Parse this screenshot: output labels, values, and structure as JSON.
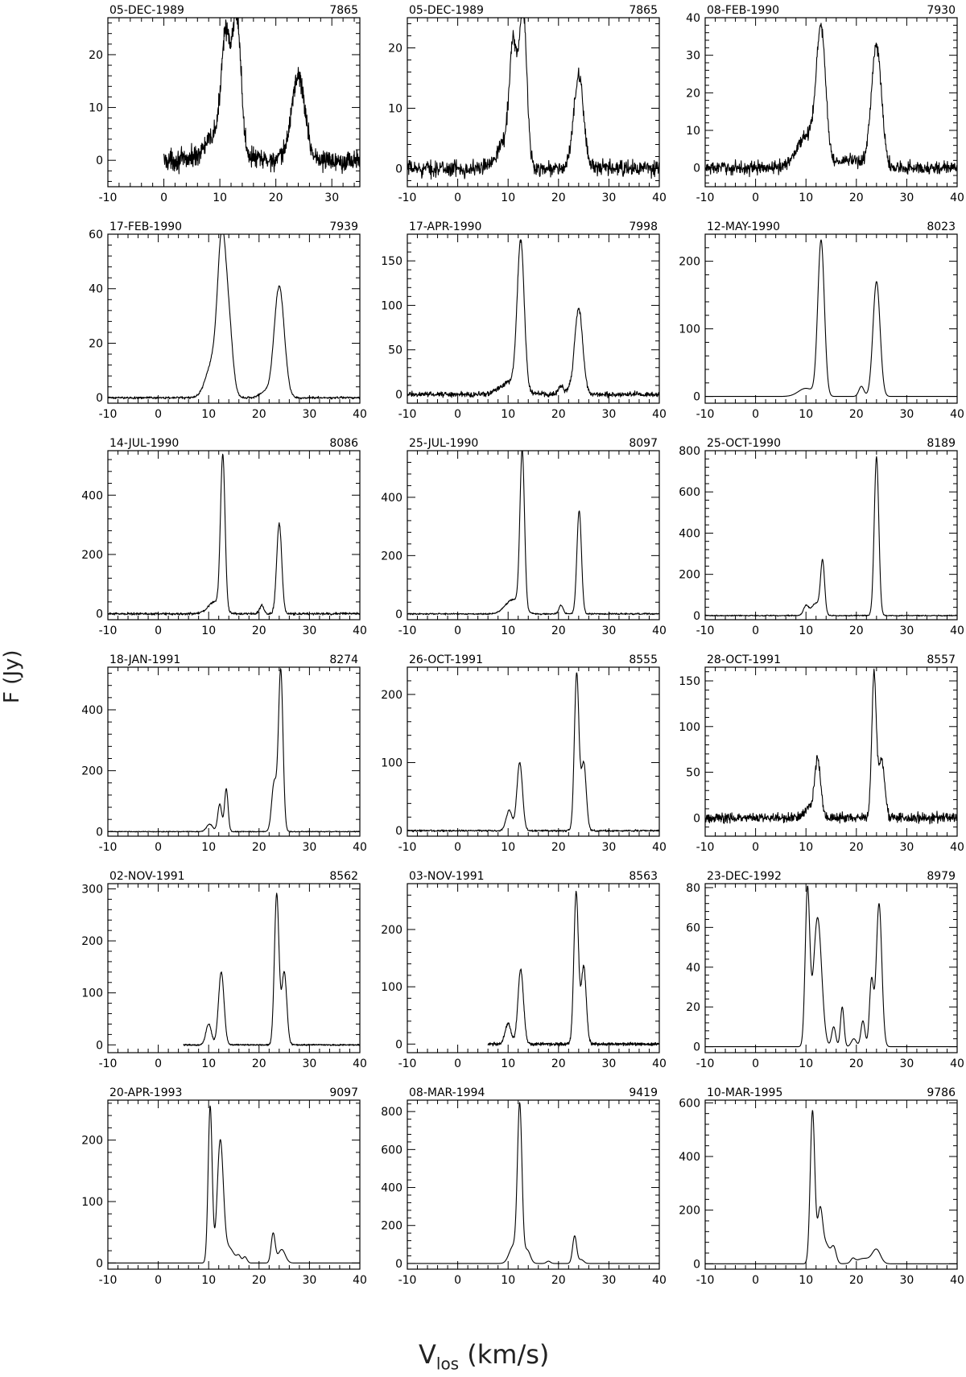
{
  "ylabel": "F  (Jy)",
  "xlabel_main": "V",
  "xlabel_sub": "los",
  "xlabel_unit": " (km/s)",
  "line_color": "#000000",
  "chart_data": [
    {
      "type": "line",
      "date": "05-DEC-1989",
      "id": "7865",
      "xlim": [
        -10,
        35
      ],
      "ylim": [
        -5,
        27
      ],
      "yticks": [
        0,
        10,
        20
      ],
      "xticks": [
        -10,
        0,
        10,
        20,
        30
      ],
      "x_range": [
        0,
        35
      ],
      "noise": 1.5,
      "baseline": 0,
      "peaks": [
        {
          "c": 11.0,
          "a": 19,
          "w": 0.7
        },
        {
          "c": 12.6,
          "a": 15,
          "w": 0.6
        },
        {
          "c": 13.4,
          "a": 15,
          "w": 0.6
        },
        {
          "c": 10.5,
          "a": 6,
          "w": 2.5
        },
        {
          "c": 24.0,
          "a": 16,
          "w": 1.2
        }
      ]
    },
    {
      "type": "line",
      "date": "05-DEC-1989",
      "id": "7865",
      "xlim": [
        -10,
        40
      ],
      "ylim": [
        -3,
        25
      ],
      "yticks": [
        0,
        10,
        20
      ],
      "xticks": [
        -10,
        0,
        10,
        20,
        30,
        40
      ],
      "x_range": [
        -10,
        40
      ],
      "noise": 1.0,
      "baseline": 0,
      "peaks": [
        {
          "c": 11.0,
          "a": 17,
          "w": 0.7
        },
        {
          "c": 12.6,
          "a": 16,
          "w": 0.6
        },
        {
          "c": 13.4,
          "a": 14,
          "w": 0.6
        },
        {
          "c": 10.0,
          "a": 5,
          "w": 2.0
        },
        {
          "c": 24.0,
          "a": 15,
          "w": 1.0
        }
      ]
    },
    {
      "type": "line",
      "date": "08-FEB-1990",
      "id": "7930",
      "xlim": [
        -10,
        40
      ],
      "ylim": [
        -5,
        40
      ],
      "yticks": [
        0,
        10,
        20,
        30,
        40
      ],
      "xticks": [
        -10,
        0,
        10,
        20,
        30,
        40
      ],
      "x_range": [
        -10,
        40
      ],
      "noise": 1.3,
      "baseline": 0,
      "peaks": [
        {
          "c": 13.0,
          "a": 33,
          "w": 0.9
        },
        {
          "c": 10.5,
          "a": 9,
          "w": 2.2
        },
        {
          "c": 24.0,
          "a": 32,
          "w": 1.0
        },
        {
          "c": 19.0,
          "a": 2,
          "w": 3.0
        }
      ]
    },
    {
      "type": "line",
      "date": "17-FEB-1990",
      "id": "7939",
      "xlim": [
        -10,
        40
      ],
      "ylim": [
        -2,
        60
      ],
      "yticks": [
        0,
        20,
        40,
        60
      ],
      "xticks": [
        -10,
        0,
        10,
        20,
        30,
        40
      ],
      "x_range": [
        -10,
        40
      ],
      "noise": 0.3,
      "baseline": 0,
      "peaks": [
        {
          "c": 12.6,
          "a": 50,
          "w": 0.8
        },
        {
          "c": 14.0,
          "a": 24,
          "w": 0.8
        },
        {
          "c": 11.0,
          "a": 14,
          "w": 1.4
        },
        {
          "c": 24.0,
          "a": 41,
          "w": 1.0
        },
        {
          "c": 21.0,
          "a": 2,
          "w": 1.0
        }
      ]
    },
    {
      "type": "line",
      "date": "17-APR-1990",
      "id": "7998",
      "xlim": [
        -10,
        40
      ],
      "ylim": [
        -10,
        180
      ],
      "yticks": [
        0,
        50,
        100,
        150
      ],
      "xticks": [
        -10,
        0,
        10,
        20,
        30,
        40
      ],
      "x_range": [
        -10,
        40
      ],
      "noise": 2.2,
      "baseline": 0,
      "peaks": [
        {
          "c": 12.5,
          "a": 165,
          "w": 0.7
        },
        {
          "c": 10.5,
          "a": 14,
          "w": 2.0
        },
        {
          "c": 24.0,
          "a": 97,
          "w": 0.8
        },
        {
          "c": 20.5,
          "a": 10,
          "w": 0.5
        },
        {
          "c": 22.0,
          "a": 5,
          "w": 0.5
        }
      ]
    },
    {
      "type": "line",
      "date": "12-MAY-1990",
      "id": "8023",
      "xlim": [
        -10,
        40
      ],
      "ylim": [
        -10,
        240
      ],
      "yticks": [
        0,
        100,
        200
      ],
      "xticks": [
        -10,
        0,
        10,
        20,
        30,
        40
      ],
      "x_range": [
        -10,
        40
      ],
      "noise": 0,
      "baseline": 0,
      "peaks": [
        {
          "c": 13.0,
          "a": 230,
          "w": 0.65
        },
        {
          "c": 10.0,
          "a": 12,
          "w": 1.5
        },
        {
          "c": 24.0,
          "a": 170,
          "w": 0.7
        },
        {
          "c": 21.0,
          "a": 15,
          "w": 0.5
        }
      ]
    },
    {
      "type": "line",
      "date": "14-JUL-1990",
      "id": "8086",
      "xlim": [
        -10,
        40
      ],
      "ylim": [
        -20,
        550
      ],
      "yticks": [
        0,
        200,
        400
      ],
      "xticks": [
        -10,
        0,
        10,
        20,
        30,
        40
      ],
      "x_range": [
        -10,
        40
      ],
      "noise": 3,
      "baseline": 0,
      "peaks": [
        {
          "c": 12.8,
          "a": 520,
          "w": 0.45
        },
        {
          "c": 11.2,
          "a": 40,
          "w": 1.3
        },
        {
          "c": 24.0,
          "a": 305,
          "w": 0.5
        },
        {
          "c": 20.5,
          "a": 28,
          "w": 0.4
        }
      ]
    },
    {
      "type": "line",
      "date": "25-JUL-1990",
      "id": "8097",
      "xlim": [
        -10,
        40
      ],
      "ylim": [
        -20,
        560
      ],
      "yticks": [
        0,
        200,
        400
      ],
      "xticks": [
        -10,
        0,
        10,
        20,
        30,
        40
      ],
      "x_range": [
        -10,
        40
      ],
      "noise": 2,
      "baseline": 0,
      "peaks": [
        {
          "c": 12.8,
          "a": 540,
          "w": 0.45
        },
        {
          "c": 11.0,
          "a": 50,
          "w": 1.5
        },
        {
          "c": 24.1,
          "a": 355,
          "w": 0.45
        },
        {
          "c": 20.5,
          "a": 30,
          "w": 0.4
        }
      ]
    },
    {
      "type": "line",
      "date": "25-OCT-1990",
      "id": "8189",
      "xlim": [
        -10,
        40
      ],
      "ylim": [
        -20,
        800
      ],
      "yticks": [
        0,
        200,
        400,
        600,
        800
      ],
      "xticks": [
        -10,
        0,
        10,
        20,
        30,
        40
      ],
      "x_range": [
        -10,
        40
      ],
      "noise": 2,
      "baseline": 0,
      "peaks": [
        {
          "c": 24.0,
          "a": 770,
          "w": 0.45
        },
        {
          "c": 13.3,
          "a": 250,
          "w": 0.4
        },
        {
          "c": 12.0,
          "a": 60,
          "w": 0.9
        },
        {
          "c": 10.0,
          "a": 45,
          "w": 0.5
        }
      ]
    },
    {
      "type": "line",
      "date": "18-JAN-1991",
      "id": "8274",
      "xlim": [
        -10,
        40
      ],
      "ylim": [
        -15,
        540
      ],
      "yticks": [
        0,
        200,
        400
      ],
      "xticks": [
        -10,
        0,
        10,
        20,
        30,
        40
      ],
      "x_range": [
        -10,
        40
      ],
      "noise": 1,
      "baseline": 0,
      "peaks": [
        {
          "c": 24.3,
          "a": 530,
          "w": 0.45
        },
        {
          "c": 23.0,
          "a": 160,
          "w": 0.5
        },
        {
          "c": 13.5,
          "a": 140,
          "w": 0.35
        },
        {
          "c": 12.2,
          "a": 90,
          "w": 0.4
        },
        {
          "c": 10.2,
          "a": 25,
          "w": 0.6
        }
      ]
    },
    {
      "type": "line",
      "date": "26-OCT-1991",
      "id": "8555",
      "xlim": [
        -10,
        40
      ],
      "ylim": [
        -8,
        240
      ],
      "yticks": [
        0,
        100,
        200
      ],
      "xticks": [
        -10,
        0,
        10,
        20,
        30,
        40
      ],
      "x_range": [
        -10,
        40
      ],
      "noise": 1,
      "baseline": 0,
      "peaks": [
        {
          "c": 23.6,
          "a": 230,
          "w": 0.45
        },
        {
          "c": 25.0,
          "a": 100,
          "w": 0.5
        },
        {
          "c": 12.3,
          "a": 100,
          "w": 0.55
        },
        {
          "c": 10.2,
          "a": 30,
          "w": 0.6
        }
      ]
    },
    {
      "type": "line",
      "date": "28-OCT-1991",
      "id": "8557",
      "xlim": [
        -10,
        40
      ],
      "ylim": [
        -20,
        165
      ],
      "yticks": [
        0,
        50,
        100,
        150
      ],
      "xticks": [
        -10,
        0,
        10,
        20,
        30,
        40
      ],
      "x_range": [
        -10,
        40
      ],
      "noise": 4,
      "baseline": 0,
      "peaks": [
        {
          "c": 23.5,
          "a": 155,
          "w": 0.45
        },
        {
          "c": 25.0,
          "a": 65,
          "w": 0.6
        },
        {
          "c": 12.3,
          "a": 65,
          "w": 0.6
        },
        {
          "c": 10.5,
          "a": 12,
          "w": 0.8
        }
      ]
    },
    {
      "type": "line",
      "date": "02-NOV-1991",
      "id": "8562",
      "xlim": [
        -10,
        40
      ],
      "ylim": [
        -15,
        310
      ],
      "yticks": [
        0,
        100,
        200,
        300
      ],
      "xticks": [
        -10,
        0,
        10,
        20,
        30,
        40
      ],
      "x_range": [
        5,
        40
      ],
      "noise": 1,
      "baseline": 0,
      "peaks": [
        {
          "c": 23.5,
          "a": 290,
          "w": 0.45
        },
        {
          "c": 25.0,
          "a": 140,
          "w": 0.5
        },
        {
          "c": 12.5,
          "a": 140,
          "w": 0.55
        },
        {
          "c": 10.0,
          "a": 40,
          "w": 0.55
        }
      ]
    },
    {
      "type": "line",
      "date": "03-NOV-1991",
      "id": "8563",
      "xlim": [
        -10,
        40
      ],
      "ylim": [
        -15,
        280
      ],
      "yticks": [
        0,
        100,
        200
      ],
      "xticks": [
        -10,
        0,
        10,
        20,
        30,
        40
      ],
      "x_range": [
        6,
        40
      ],
      "noise": 2,
      "baseline": 0,
      "peaks": [
        {
          "c": 23.5,
          "a": 265,
          "w": 0.45
        },
        {
          "c": 25.0,
          "a": 135,
          "w": 0.5
        },
        {
          "c": 12.5,
          "a": 130,
          "w": 0.55
        },
        {
          "c": 10.0,
          "a": 35,
          "w": 0.6
        }
      ]
    },
    {
      "type": "line",
      "date": "23-DEC-1992",
      "id": "8979",
      "xlim": [
        -10,
        40
      ],
      "ylim": [
        -3,
        82
      ],
      "yticks": [
        0,
        20,
        40,
        60,
        80
      ],
      "xticks": [
        -10,
        0,
        10,
        20,
        30,
        40
      ],
      "x_range": [
        -10,
        40
      ],
      "noise": 0,
      "baseline": 0,
      "peaks": [
        {
          "c": 10.3,
          "a": 78,
          "w": 0.45
        },
        {
          "c": 12.3,
          "a": 65,
          "w": 0.8
        },
        {
          "c": 15.5,
          "a": 10,
          "w": 0.4
        },
        {
          "c": 17.2,
          "a": 20,
          "w": 0.35
        },
        {
          "c": 19.5,
          "a": 4,
          "w": 0.5
        },
        {
          "c": 21.3,
          "a": 13,
          "w": 0.4
        },
        {
          "c": 23.0,
          "a": 33,
          "w": 0.4
        },
        {
          "c": 24.5,
          "a": 72,
          "w": 0.55
        }
      ]
    },
    {
      "type": "line",
      "date": "20-APR-1993",
      "id": "9097",
      "xlim": [
        -10,
        40
      ],
      "ylim": [
        -10,
        265
      ],
      "yticks": [
        0,
        100,
        200
      ],
      "xticks": [
        -10,
        0,
        10,
        20,
        30,
        40
      ],
      "x_range": [
        -10,
        40
      ],
      "noise": 0,
      "baseline": 0,
      "peaks": [
        {
          "c": 10.3,
          "a": 255,
          "w": 0.4
        },
        {
          "c": 12.3,
          "a": 195,
          "w": 0.6
        },
        {
          "c": 14.0,
          "a": 25,
          "w": 1.0
        },
        {
          "c": 16.0,
          "a": 10,
          "w": 0.4
        },
        {
          "c": 17.2,
          "a": 10,
          "w": 0.4
        },
        {
          "c": 22.8,
          "a": 48,
          "w": 0.4
        },
        {
          "c": 24.5,
          "a": 22,
          "w": 0.7
        }
      ]
    },
    {
      "type": "line",
      "date": "08-MAR-1994",
      "id": "9419",
      "xlim": [
        -10,
        40
      ],
      "ylim": [
        -30,
        860
      ],
      "yticks": [
        0,
        200,
        400,
        600,
        800
      ],
      "xticks": [
        -10,
        0,
        10,
        20,
        30,
        40
      ],
      "x_range": [
        -10,
        40
      ],
      "noise": 0,
      "baseline": 0,
      "peaks": [
        {
          "c": 12.3,
          "a": 820,
          "w": 0.45
        },
        {
          "c": 11.0,
          "a": 90,
          "w": 0.8
        },
        {
          "c": 13.8,
          "a": 70,
          "w": 0.6
        },
        {
          "c": 18.0,
          "a": 12,
          "w": 0.4
        },
        {
          "c": 23.2,
          "a": 145,
          "w": 0.4
        },
        {
          "c": 24.5,
          "a": 20,
          "w": 0.5
        }
      ]
    },
    {
      "type": "line",
      "date": "10-MAR-1995",
      "id": "9786",
      "xlim": [
        -10,
        40
      ],
      "ylim": [
        -20,
        610
      ],
      "yticks": [
        0,
        200,
        400,
        600
      ],
      "xticks": [
        -10,
        0,
        10,
        20,
        30,
        40
      ],
      "x_range": [
        -10,
        40
      ],
      "noise": 0,
      "baseline": 0,
      "peaks": [
        {
          "c": 11.3,
          "a": 570,
          "w": 0.45
        },
        {
          "c": 12.8,
          "a": 195,
          "w": 0.5
        },
        {
          "c": 14.0,
          "a": 70,
          "w": 0.7
        },
        {
          "c": 15.5,
          "a": 60,
          "w": 0.5
        },
        {
          "c": 19.3,
          "a": 15,
          "w": 0.4
        },
        {
          "c": 24.0,
          "a": 50,
          "w": 0.8
        },
        {
          "c": 21.5,
          "a": 20,
          "w": 1.5
        }
      ]
    }
  ]
}
